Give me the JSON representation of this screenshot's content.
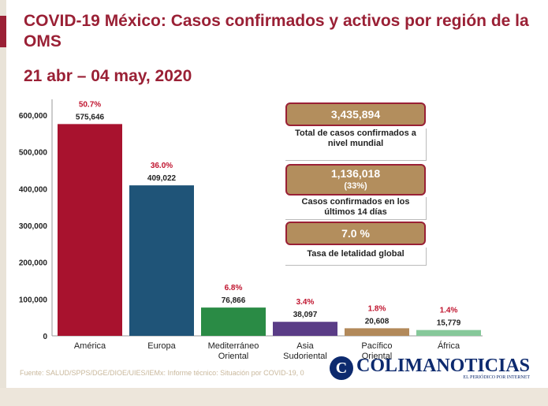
{
  "title": "COVID-19 México: Casos confirmados y activos por región de la OMS",
  "date_range": "21 abr – 04 may, 2020",
  "colors": {
    "accent": "#9a2035",
    "gold": "#b38e5d",
    "bars": [
      "#a8122e",
      "#1f5478",
      "#2a8b45",
      "#5a3c86",
      "#b2895a",
      "#86c89a"
    ]
  },
  "chart_data": {
    "type": "bar",
    "categories": [
      "América",
      "Europa",
      "Mediterráneo Oriental",
      "Asia Sudoriental",
      "Pacífico Oriental",
      "África"
    ],
    "values": [
      575646,
      409022,
      76866,
      38097,
      20608,
      15779
    ],
    "value_labels": [
      "575,646",
      "409,022",
      "76,866",
      "38,097",
      "20,608",
      "15,779"
    ],
    "percent_labels": [
      "50.7%",
      "36.0%",
      "6.8%",
      "3.4%",
      "1.8%",
      "1.4%"
    ],
    "yticks": [
      "0",
      "100,000",
      "200,000",
      "300,000",
      "400,000",
      "500,000",
      "600,000"
    ],
    "ylim": [
      0,
      600000
    ],
    "grid": false
  },
  "stats": {
    "total_value": "3,435,894",
    "total_desc": "Total de casos confirmados a nivel mundial",
    "recent_value": "1,136,018",
    "recent_pct": "(33%)",
    "recent_desc": "Casos confirmados en los últimos 14 días",
    "lethality_value": "7.0 %",
    "lethality_desc": "Tasa de letalidad global"
  },
  "source": "Fuente: SALUD/SPPS/DGE/DIOE/UIES/IEMx: Informe técnico: Situación por COVID-19, 0",
  "watermark": {
    "logo": "C",
    "name": "COLIMANOTICIAS",
    "tagline": "EL PERIÓDICO POR INTERNET"
  }
}
